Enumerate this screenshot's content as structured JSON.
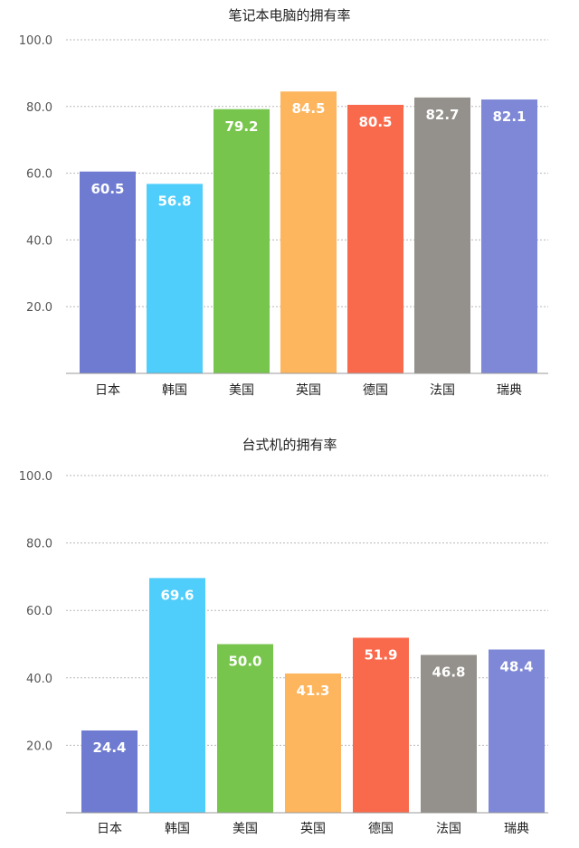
{
  "chart_data": [
    {
      "type": "bar",
      "title": "笔记本电脑的拥有率",
      "categories": [
        "日本",
        "韩国",
        "美国",
        "英国",
        "德国",
        "法国",
        "瑞典"
      ],
      "values": [
        60.5,
        56.8,
        79.2,
        84.5,
        80.5,
        82.7,
        82.1
      ],
      "colors": [
        "#6f7bd0",
        "#4fcdfb",
        "#77c54c",
        "#fdb55e",
        "#f96a4d",
        "#94908b",
        "#7e88d6"
      ],
      "yticks": [
        "20.0",
        "40.0",
        "60.0",
        "80.0",
        "100.0"
      ],
      "ylim": [
        0,
        100
      ],
      "grid": true,
      "legend": "none"
    },
    {
      "type": "bar",
      "title": "台式机的拥有率",
      "categories": [
        "日本",
        "韩国",
        "美国",
        "英国",
        "德国",
        "法国",
        "瑞典"
      ],
      "values": [
        24.4,
        69.6,
        50.0,
        41.3,
        51.9,
        46.8,
        48.4
      ],
      "colors": [
        "#6f7bd0",
        "#4fcdfb",
        "#77c54c",
        "#fdb55e",
        "#f96a4d",
        "#94908b",
        "#7e88d6"
      ],
      "yticks": [
        "20.0",
        "40.0",
        "60.0",
        "80.0",
        "100.0"
      ],
      "ylim": [
        0,
        100
      ],
      "grid": true,
      "legend": "none"
    }
  ]
}
